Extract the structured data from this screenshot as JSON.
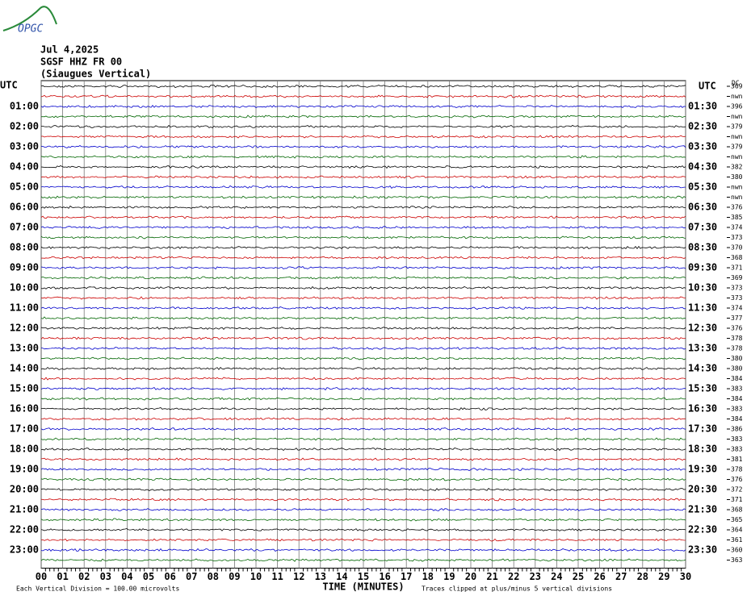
{
  "logo": "OPGC",
  "header": {
    "date": "Jul 4,2025",
    "station": "SGSF HHZ FR 00",
    "location": "(Siaugues Vertical)"
  },
  "left_labels": [
    "UTC",
    "01:00",
    "02:00",
    "03:00",
    "04:00",
    "05:00",
    "06:00",
    "07:00",
    "08:00",
    "09:00",
    "10:00",
    "11:00",
    "12:00",
    "13:00",
    "14:00",
    "15:00",
    "16:00",
    "17:00",
    "18:00",
    "19:00",
    "20:00",
    "21:00",
    "22:00",
    "23:00"
  ],
  "right_labels": [
    "UTC",
    "01:30",
    "02:30",
    "03:30",
    "04:30",
    "05:30",
    "06:30",
    "07:30",
    "08:30",
    "09:30",
    "10:30",
    "11:30",
    "12:30",
    "13:30",
    "14:30",
    "15:30",
    "16:30",
    "17:30",
    "18:30",
    "19:30",
    "20:30",
    "21:30",
    "22:30",
    "23:30"
  ],
  "dc_title": "DC",
  "dc_values": [
    "369",
    "nwn",
    "396",
    "nwn",
    "379",
    "nwn",
    "379",
    "nwn",
    "382",
    "380",
    "nwn",
    "nwn",
    "376",
    "385",
    "374",
    "373",
    "370",
    "368",
    "371",
    "369",
    "373",
    "373",
    "374",
    "377",
    "376",
    "378",
    "378",
    "380",
    "380",
    "384",
    "383",
    "384",
    "383",
    "384",
    "386",
    "383",
    "383",
    "381",
    "378",
    "376",
    "372",
    "371",
    "368",
    "365",
    "364",
    "361",
    "360",
    "363"
  ],
  "x_ticks": [
    "00",
    "01",
    "02",
    "03",
    "04",
    "05",
    "06",
    "07",
    "08",
    "09",
    "10",
    "11",
    "12",
    "13",
    "14",
    "15",
    "16",
    "17",
    "18",
    "19",
    "20",
    "21",
    "22",
    "23",
    "24",
    "25",
    "26",
    "27",
    "28",
    "29",
    "30"
  ],
  "x_axis_label": "TIME (MINUTES)",
  "footer": {
    "division": "Each Vertical Division =  100.00 microvolts",
    "clipping": "Traces clipped at plus/minus 5 vertical divisions"
  },
  "trace_colors": [
    "#000000",
    "#cc0000",
    "#0000cc",
    "#006600"
  ]
}
